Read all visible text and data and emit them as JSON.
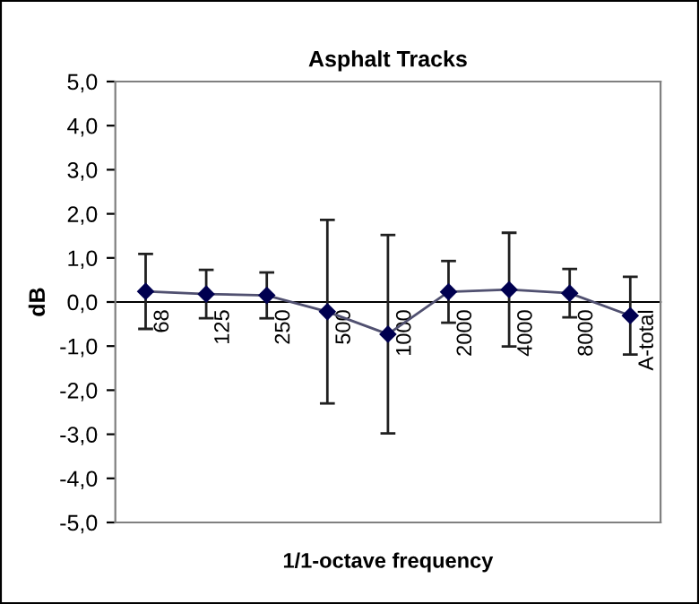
{
  "chart_data": {
    "type": "line",
    "title": "Asphalt Tracks",
    "xlabel": "1/1-octave frequency",
    "ylabel": "dB",
    "categories": [
      "68",
      "125",
      "250",
      "500",
      "1000",
      "2000",
      "4000",
      "8000",
      "A-total"
    ],
    "series": [
      {
        "color": "#000050",
        "values": [
          0.24,
          0.18,
          0.15,
          -0.22,
          -0.73,
          0.23,
          0.28,
          0.2,
          -0.31
        ],
        "errors": [
          0.85,
          0.55,
          0.52,
          2.08,
          2.25,
          0.7,
          1.29,
          0.55,
          0.88
        ]
      }
    ],
    "ylim": [
      -5,
      5
    ],
    "yticks": [
      {
        "value": -5,
        "label": "-5,0"
      },
      {
        "value": -4,
        "label": "-4,0"
      },
      {
        "value": -3,
        "label": "-3,0"
      },
      {
        "value": -2,
        "label": "-2,0"
      },
      {
        "value": -1,
        "label": "-1,0"
      },
      {
        "value": 0,
        "label": "0,0"
      },
      {
        "value": 1,
        "label": "1,0"
      },
      {
        "value": 2,
        "label": "2,0"
      },
      {
        "value": 3,
        "label": "3,0"
      },
      {
        "value": 4,
        "label": "4,0"
      },
      {
        "value": 5,
        "label": "5,0"
      }
    ],
    "grid": false,
    "legend": false,
    "marker": "diamond",
    "line_style": "solid"
  }
}
